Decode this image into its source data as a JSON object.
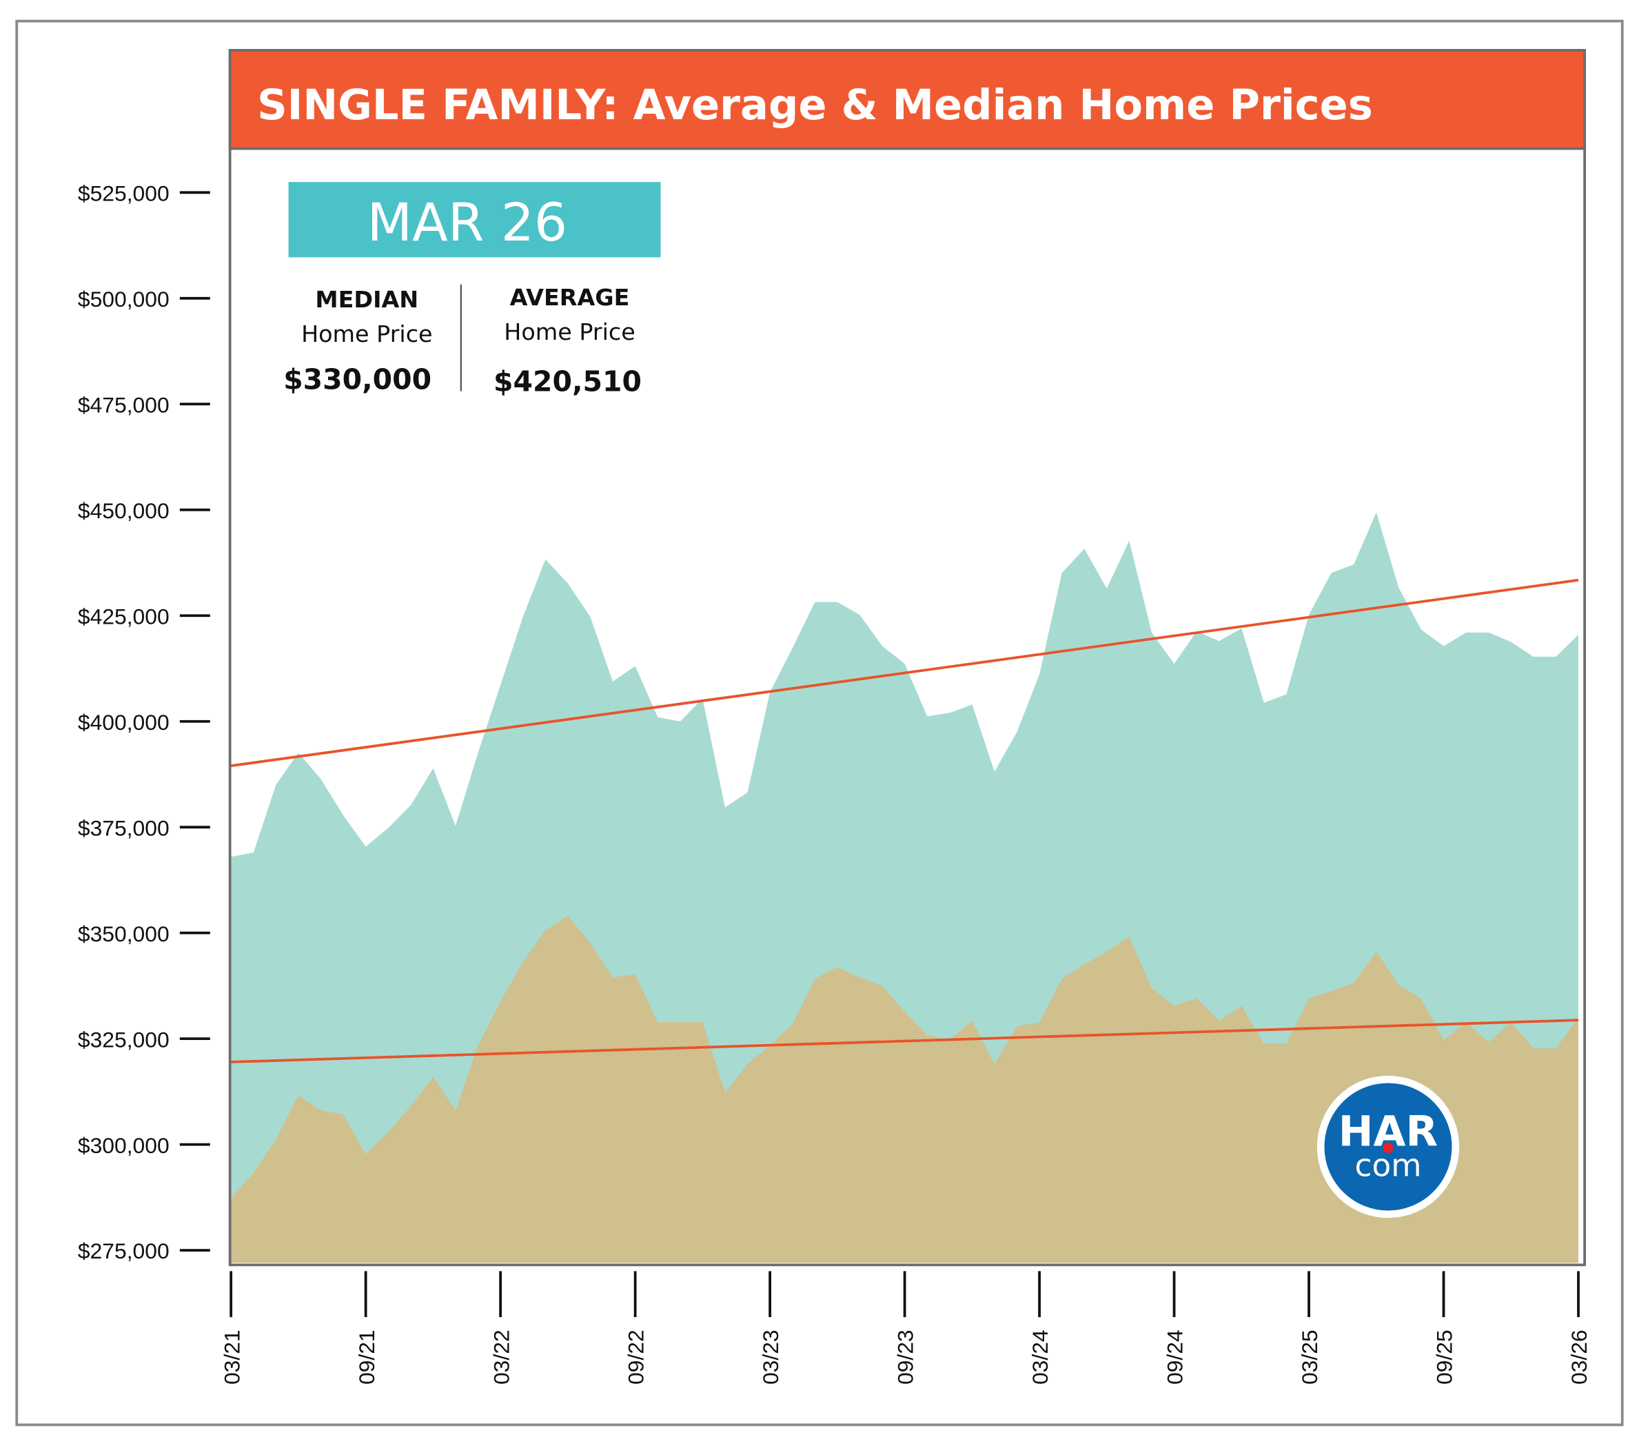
{
  "chart_data": {
    "type": "area",
    "title": "SINGLE FAMILY: Average & Median Home Prices",
    "ylim": [
      270000,
      535000
    ],
    "y_ticks": [
      "$525,000",
      "$500,000",
      "$475,000",
      "$450,000",
      "$425,000",
      "$400,000",
      "$375,000",
      "$350,000",
      "$325,000",
      "$300,000",
      "$275,000"
    ],
    "y_tick_values": [
      525000,
      500000,
      475000,
      450000,
      425000,
      400000,
      375000,
      350000,
      325000,
      300000,
      275000
    ],
    "x_ticks": [
      "03/21",
      "09/21",
      "03/22",
      "09/22",
      "03/23",
      "09/23",
      "03/24",
      "09/24",
      "03/25",
      "09/25",
      "03/26"
    ],
    "x_start": "03/21",
    "x_end": "03/26",
    "grid": false,
    "series": [
      {
        "key": "average",
        "color": "#a7dbd2",
        "values": [
          368000,
          369000,
          385000,
          392600,
          386400,
          377800,
          370400,
          374800,
          380200,
          388900,
          375300,
          392600,
          408600,
          424700,
          438300,
          432600,
          424700,
          409400,
          413100,
          401000,
          400000,
          405400,
          379700,
          383200,
          406900,
          417300,
          428200,
          428200,
          425200,
          417800,
          413600,
          401200,
          402000,
          404000,
          388100,
          397500,
          411100,
          435100,
          440800,
          431400,
          442700,
          421000,
          413600,
          421300,
          419000,
          422000,
          404400,
          406400,
          425200,
          435100,
          437100,
          449400,
          431600,
          421700,
          417800,
          421000,
          421000,
          418800,
          415300,
          415300,
          420510
        ]
      },
      {
        "key": "median",
        "color": "#cfc08e",
        "values": [
          287400,
          293300,
          301200,
          311600,
          308100,
          307100,
          297700,
          302900,
          309100,
          316000,
          308100,
          323400,
          333800,
          343200,
          350600,
          354100,
          347600,
          339500,
          340200,
          328900,
          328900,
          328900,
          312300,
          319000,
          323400,
          328400,
          339200,
          341900,
          339500,
          337500,
          331400,
          325900,
          324700,
          329300,
          319000,
          327900,
          328900,
          339200,
          342600,
          345600,
          349100,
          337000,
          332800,
          334500,
          329300,
          332800,
          323900,
          323900,
          334500,
          336300,
          338200,
          345600,
          337700,
          334500,
          324700,
          328900,
          324200,
          328900,
          322700,
          322700,
          330000
        ]
      }
    ],
    "trendlines": [
      {
        "of": "average",
        "start": 389500,
        "end": 433400,
        "color": "#e8542a"
      },
      {
        "of": "median",
        "start": 319500,
        "end": 329400,
        "color": "#e8542a"
      }
    ]
  },
  "header": {
    "title": "SINGLE FAMILY: Average & Median Home Prices",
    "color": "#f05a32"
  },
  "badge": {
    "label": "MAR 26",
    "color": "#4bc1c8"
  },
  "kpis": {
    "median": {
      "title": "MEDIAN",
      "subtitle": "Home Price",
      "value": "$330,000"
    },
    "average": {
      "title": "AVERAGE",
      "subtitle": "Home Price",
      "value": "$420,510"
    }
  },
  "logo": {
    "line1": "HAR",
    "line2": "com",
    "color": "#0b67b2"
  }
}
